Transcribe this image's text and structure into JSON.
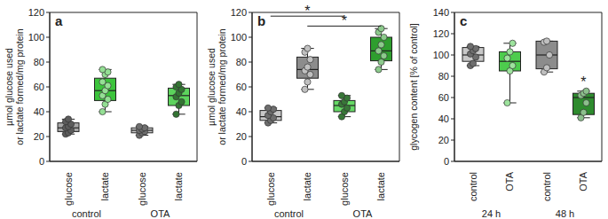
{
  "chart_data": [
    {
      "type": "box",
      "title": "a",
      "y_label": "µmol glucose used\nor lactate formed/mg protein",
      "categories": [
        "glucose",
        "lactate",
        "glucose",
        "lactate"
      ],
      "groups": [
        {
          "label": "control",
          "span": 2
        },
        {
          "label": "OTA",
          "span": 2
        }
      ],
      "colors": [
        "#a8a8a8",
        "#3cc43c",
        "#c8c8c8",
        "#5cd35c"
      ],
      "ylim": [
        0,
        120
      ],
      "yticks": [
        0,
        20,
        40,
        60,
        80,
        100,
        120
      ],
      "boxes": [
        {
          "min": 22,
          "q1": 24,
          "median": 27,
          "q3": 31,
          "max": 34,
          "points": [
            22,
            23,
            25,
            27,
            28,
            30,
            32,
            34
          ]
        },
        {
          "min": 40,
          "q1": 49,
          "median": 57,
          "q3": 67,
          "max": 74,
          "points": [
            40,
            46,
            50,
            53,
            57,
            61,
            64,
            70,
            72,
            74
          ]
        },
        {
          "min": 21,
          "q1": 23,
          "median": 25,
          "q3": 27,
          "max": 28,
          "points": [
            21,
            23,
            24,
            25,
            26,
            27,
            28
          ]
        },
        {
          "min": 38,
          "q1": 45,
          "median": 53,
          "q3": 59,
          "max": 62,
          "points": [
            38,
            45,
            48,
            52,
            55,
            58,
            60,
            62
          ]
        }
      ],
      "annotations": []
    },
    {
      "type": "box",
      "title": "b",
      "y_label": "µmol glucose used\nor lactate formed/mg protein",
      "categories": [
        "glucose",
        "lactate",
        "glucose",
        "lactate"
      ],
      "groups": [
        {
          "label": "control",
          "span": 2
        },
        {
          "label": "OTA",
          "span": 2
        }
      ],
      "colors": [
        "#c8c8c8",
        "#8c8c8c",
        "#66d966",
        "#2e9e2e"
      ],
      "ylim": [
        0,
        120
      ],
      "yticks": [
        0,
        20,
        40,
        60,
        80,
        100,
        120
      ],
      "boxes": [
        {
          "min": 31,
          "q1": 33,
          "median": 36,
          "q3": 41,
          "max": 43,
          "points": [
            31,
            33,
            35,
            37,
            40,
            42,
            43
          ]
        },
        {
          "min": 58,
          "q1": 67,
          "median": 74,
          "q3": 84,
          "max": 91,
          "points": [
            58,
            64,
            70,
            73,
            76,
            82,
            88,
            91
          ]
        },
        {
          "min": 36,
          "q1": 40,
          "median": 45,
          "q3": 49,
          "max": 53,
          "points": [
            36,
            40,
            43,
            46,
            48,
            51,
            53
          ]
        },
        {
          "min": 74,
          "q1": 81,
          "median": 89,
          "q3": 100,
          "max": 107,
          "points": [
            74,
            80,
            85,
            89,
            94,
            100,
            104,
            107
          ]
        }
      ],
      "annotations": [
        {
          "text": "*",
          "x": [
            0,
            2
          ],
          "y": 117
        },
        {
          "text": "*",
          "x": [
            1,
            3
          ],
          "y": 109
        }
      ]
    },
    {
      "type": "box",
      "title": "c",
      "y_label": "glycogen content [% of control]",
      "categories": [
        "control",
        "OTA",
        "control",
        "OTA"
      ],
      "groups": [
        {
          "label": "24 h",
          "span": 2
        },
        {
          "label": "48 h",
          "span": 2
        }
      ],
      "colors": [
        "#c8c8c8",
        "#4dcc4d",
        "#8c8c8c",
        "#2e8b2e"
      ],
      "ylim": [
        0,
        140
      ],
      "yticks": [
        0,
        20,
        40,
        60,
        80,
        100,
        120,
        140
      ],
      "boxes": [
        {
          "min": 90,
          "q1": 94,
          "median": 100,
          "q3": 107,
          "max": 108,
          "points": [
            90,
            92,
            98,
            101,
            104,
            106,
            108
          ]
        },
        {
          "min": 55,
          "q1": 85,
          "median": 94,
          "q3": 103,
          "max": 111,
          "points": [
            55,
            85,
            90,
            97,
            103,
            111
          ]
        },
        {
          "min": 84,
          "q1": 87,
          "median": 100,
          "q3": 113,
          "max": 113,
          "points": [
            84,
            88,
            100,
            112,
            113
          ]
        },
        {
          "min": 41,
          "q1": 44,
          "median": 60,
          "q3": 64,
          "max": 66,
          "points": [
            41,
            46,
            55,
            62,
            64,
            66
          ]
        }
      ],
      "annotations": [
        {
          "text": "*",
          "x": 3,
          "y": 70
        }
      ]
    }
  ]
}
